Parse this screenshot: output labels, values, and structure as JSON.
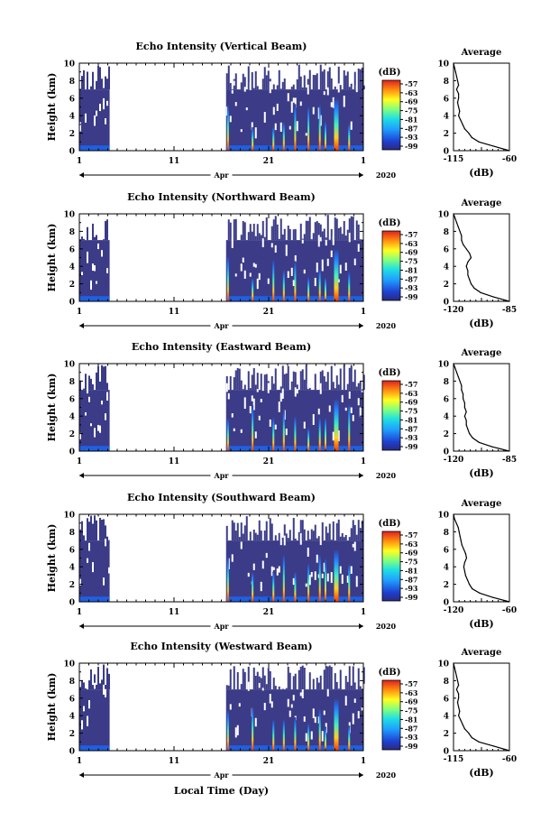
{
  "chart_data": [
    {
      "type": "heatmap",
      "title": "Echo Intensity (Vertical Beam)",
      "ylabel": "Height (km)",
      "xticks": [
        "1",
        "11",
        "21",
        "1"
      ],
      "xaxis_label": "Apr",
      "year": "2020",
      "ylim": [
        0,
        10
      ],
      "yticks": [
        "0",
        "2",
        "4",
        "6",
        "8",
        "10"
      ],
      "colorbar_label": "(dB)",
      "colorbar_ticks": [
        "-57",
        "-63",
        "-69",
        "-75",
        "-81",
        "-87",
        "-93",
        "-99"
      ],
      "profile": {
        "title": "Average",
        "xlabel": "(dB)",
        "xticks": [
          "-115",
          "-60"
        ],
        "xlim": [
          -115,
          -60
        ],
        "heights": [
          0,
          0.5,
          1,
          1.5,
          2,
          2.5,
          3,
          3.5,
          4,
          4.5,
          5,
          5.5,
          6,
          6.5,
          7,
          7.5,
          8,
          8.5,
          9,
          9.5,
          10
        ],
        "values": [
          -60,
          -75,
          -90,
          -97,
          -100,
          -104,
          -106,
          -108,
          -110,
          -109,
          -110,
          -111,
          -110,
          -110,
          -112,
          -110,
          -111,
          -112,
          -113,
          -114,
          -115
        ]
      }
    },
    {
      "type": "heatmap",
      "title": "Echo Intensity (Northward Beam)",
      "ylabel": "Height (km)",
      "xticks": [
        "1",
        "11",
        "21",
        "1"
      ],
      "xaxis_label": "Apr",
      "year": "2020",
      "ylim": [
        0,
        10
      ],
      "yticks": [
        "0",
        "2",
        "4",
        "6",
        "8",
        "10"
      ],
      "colorbar_label": "(dB)",
      "colorbar_ticks": [
        "-57",
        "-63",
        "-69",
        "-75",
        "-81",
        "-87",
        "-93",
        "-99"
      ],
      "profile": {
        "title": "Average",
        "xlabel": "(dB)",
        "xticks": [
          "-120",
          "-85"
        ],
        "xlim": [
          -120,
          -85
        ],
        "heights": [
          0,
          0.5,
          1,
          1.5,
          2,
          2.5,
          3,
          3.5,
          4,
          4.5,
          5,
          5.5,
          6,
          6.5,
          7,
          7.5,
          8,
          8.5,
          9,
          9.5,
          10
        ],
        "values": [
          -85,
          -95,
          -103,
          -107,
          -109,
          -110,
          -111,
          -111,
          -112,
          -111,
          -109,
          -110,
          -112,
          -114,
          -115,
          -115,
          -116,
          -117,
          -118,
          -119,
          -120
        ]
      }
    },
    {
      "type": "heatmap",
      "title": "Echo Intensity (Eastward Beam)",
      "ylabel": "Height (km)",
      "xticks": [
        "1",
        "11",
        "21",
        "1"
      ],
      "xaxis_label": "Apr",
      "year": "2020",
      "ylim": [
        0,
        10
      ],
      "yticks": [
        "0",
        "2",
        "4",
        "6",
        "8",
        "10"
      ],
      "colorbar_label": "(dB)",
      "colorbar_ticks": [
        "-57",
        "-63",
        "-69",
        "-75",
        "-81",
        "-87",
        "-93",
        "-99"
      ],
      "profile": {
        "title": "Average",
        "xlabel": "(dB)",
        "xticks": [
          "-120",
          "-85"
        ],
        "xlim": [
          -120,
          -85
        ],
        "heights": [
          0,
          0.5,
          1,
          1.5,
          2,
          2.5,
          3,
          3.5,
          4,
          4.5,
          5,
          5.5,
          6,
          6.5,
          7,
          7.5,
          8,
          8.5,
          9,
          9.5,
          10
        ],
        "values": [
          -85,
          -96,
          -104,
          -108,
          -110,
          -111,
          -112,
          -112,
          -113,
          -112,
          -113,
          -113,
          -114,
          -114,
          -115,
          -115,
          -116,
          -117,
          -118,
          -119,
          -120
        ]
      }
    },
    {
      "type": "heatmap",
      "title": "Echo Intensity (Southward Beam)",
      "ylabel": "Height (km)",
      "xticks": [
        "1",
        "11",
        "21",
        "1"
      ],
      "xaxis_label": "Apr",
      "year": "2020",
      "ylim": [
        0,
        10
      ],
      "yticks": [
        "0",
        "2",
        "4",
        "6",
        "8",
        "10"
      ],
      "colorbar_label": "(dB)",
      "colorbar_ticks": [
        "-57",
        "-63",
        "-69",
        "-75",
        "-81",
        "-87",
        "-93",
        "-99"
      ],
      "profile": {
        "title": "Average",
        "xlabel": "(dB)",
        "xticks": [
          "-120",
          "-60"
        ],
        "xlim": [
          -120,
          -60
        ],
        "heights": [
          0,
          0.5,
          1,
          1.5,
          2,
          2.5,
          3,
          3.5,
          4,
          4.5,
          5,
          5.5,
          6,
          6.5,
          7,
          7.5,
          8,
          8.5,
          9,
          9.5,
          10
        ],
        "values": [
          -60,
          -78,
          -92,
          -100,
          -103,
          -105,
          -107,
          -108,
          -109,
          -108,
          -106,
          -107,
          -109,
          -111,
          -112,
          -113,
          -114,
          -115,
          -117,
          -119,
          -120
        ]
      }
    },
    {
      "type": "heatmap",
      "title": "Echo Intensity (Westward Beam)",
      "ylabel": "Height (km)",
      "xticks": [
        "1",
        "11",
        "21",
        "1"
      ],
      "xaxis_label": "Apr",
      "year": "2020",
      "xlabel": "Local Time (Day)",
      "ylim": [
        0,
        10
      ],
      "yticks": [
        "0",
        "2",
        "4",
        "6",
        "8",
        "10"
      ],
      "colorbar_label": "(dB)",
      "colorbar_ticks": [
        "-57",
        "-63",
        "-69",
        "-75",
        "-81",
        "-87",
        "-93",
        "-99"
      ],
      "profile": {
        "title": "Average",
        "xlabel": "(dB)",
        "xticks": [
          "-115",
          "-60"
        ],
        "xlim": [
          -115,
          -60
        ],
        "heights": [
          0,
          0.5,
          1,
          1.5,
          2,
          2.5,
          3,
          3.5,
          4,
          4.5,
          5,
          5.5,
          6,
          6.5,
          7,
          7.5,
          8,
          8.5,
          9,
          9.5,
          10
        ],
        "values": [
          -60,
          -75,
          -90,
          -97,
          -100,
          -104,
          -106,
          -108,
          -110,
          -109,
          -110,
          -111,
          -110,
          -110,
          -112,
          -110,
          -111,
          -112,
          -113,
          -114,
          -115
        ]
      }
    }
  ]
}
